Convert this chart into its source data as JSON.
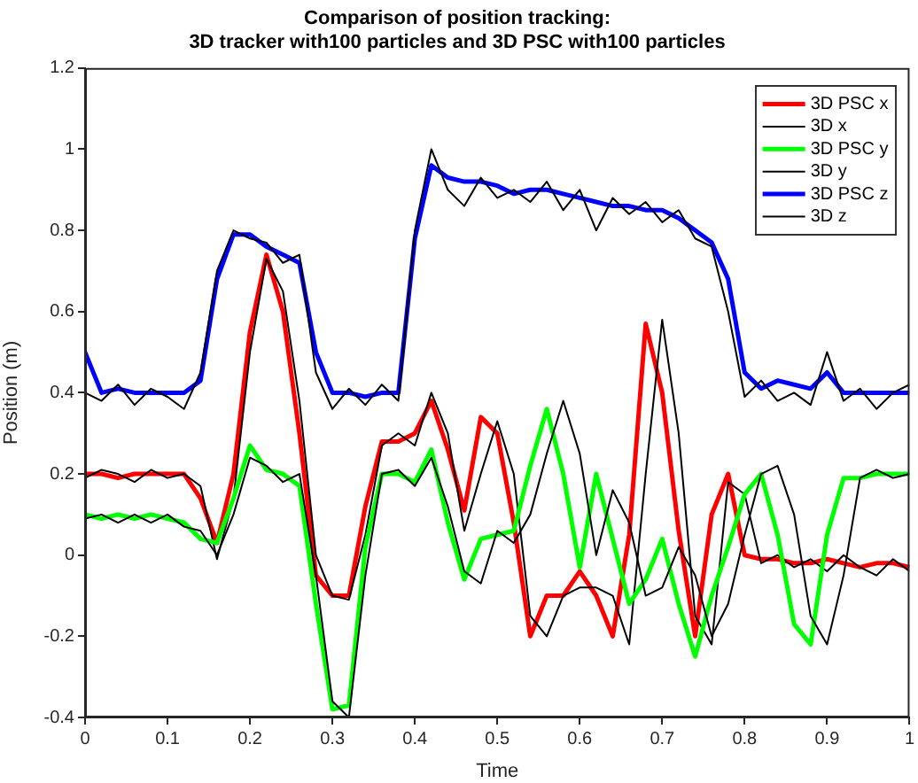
{
  "chart_data": {
    "type": "line",
    "title": [
      "Comparison of position tracking:",
      "3D tracker with100 particles and 3D PSC with100 particles"
    ],
    "xlabel": "Time",
    "ylabel": "Position (m)",
    "x": [
      0,
      0.02,
      0.04,
      0.06,
      0.08,
      0.1,
      0.12,
      0.14,
      0.16,
      0.18,
      0.2,
      0.22,
      0.24,
      0.26,
      0.28,
      0.3,
      0.32,
      0.34,
      0.36,
      0.38,
      0.4,
      0.42,
      0.44,
      0.46,
      0.48,
      0.5,
      0.52,
      0.54,
      0.56,
      0.58,
      0.6,
      0.62,
      0.64,
      0.66,
      0.68,
      0.7,
      0.72,
      0.74,
      0.76,
      0.78,
      0.8,
      0.82,
      0.84,
      0.86,
      0.88,
      0.9,
      0.92,
      0.94,
      0.96,
      0.98,
      1
    ],
    "xlim": [
      0,
      1
    ],
    "xticks": [
      0,
      0.1,
      0.2,
      0.3,
      0.4,
      0.5,
      0.6,
      0.7,
      0.8,
      0.9,
      1
    ],
    "ylim": [
      -0.4,
      1.2
    ],
    "yticks": [
      -0.4,
      -0.2,
      0,
      0.2,
      0.4,
      0.6,
      0.8,
      1,
      1.2
    ],
    "grid": false,
    "legend": "top right",
    "marker": "none",
    "line_style": "solid",
    "series": [
      {
        "name": "3D PSC x",
        "color": "#ff0000",
        "values": [
          0.2,
          0.2,
          0.19,
          0.2,
          0.2,
          0.2,
          0.2,
          0.14,
          0.03,
          0.2,
          0.55,
          0.74,
          0.6,
          0.3,
          -0.05,
          -0.1,
          -0.1,
          0.12,
          0.28,
          0.28,
          0.3,
          0.38,
          0.26,
          0.11,
          0.34,
          0.3,
          0.08,
          -0.2,
          -0.1,
          -0.1,
          -0.04,
          -0.1,
          -0.2,
          0.05,
          0.57,
          0.4,
          0.06,
          -0.2,
          0.1,
          0.2,
          0.0,
          -0.01,
          -0.01,
          -0.02,
          -0.02,
          -0.01,
          -0.02,
          -0.03,
          -0.02,
          -0.02,
          -0.03
        ]
      },
      {
        "name": "3D x",
        "color": "#000000",
        "values": [
          0.19,
          0.21,
          0.2,
          0.18,
          0.21,
          0.19,
          0.2,
          0.17,
          -0.01,
          0.14,
          0.5,
          0.73,
          0.65,
          0.38,
          0.0,
          -0.1,
          -0.11,
          0.05,
          0.27,
          0.3,
          0.27,
          0.4,
          0.3,
          0.06,
          0.2,
          0.33,
          0.2,
          -0.15,
          -0.2,
          -0.1,
          -0.08,
          -0.08,
          -0.1,
          -0.22,
          0.2,
          0.58,
          0.3,
          -0.15,
          -0.22,
          0.18,
          0.15,
          -0.02,
          0.0,
          -0.03,
          -0.01,
          -0.04,
          0.0,
          -0.03,
          -0.05,
          -0.01,
          -0.04
        ]
      },
      {
        "name": "3D PSC y",
        "color": "#00ff00",
        "values": [
          0.1,
          0.09,
          0.1,
          0.09,
          0.1,
          0.09,
          0.08,
          0.04,
          0.03,
          0.14,
          0.27,
          0.21,
          0.2,
          0.17,
          -0.12,
          -0.38,
          -0.37,
          0.02,
          0.2,
          0.2,
          0.18,
          0.26,
          0.08,
          -0.06,
          0.04,
          0.05,
          0.06,
          0.22,
          0.36,
          0.2,
          -0.03,
          0.2,
          0.04,
          -0.12,
          -0.06,
          0.04,
          -0.12,
          -0.25,
          -0.1,
          0.02,
          0.15,
          0.2,
          0.05,
          -0.17,
          -0.22,
          0.05,
          0.19,
          0.19,
          0.2,
          0.2,
          0.2
        ]
      },
      {
        "name": "3D y",
        "color": "#000000",
        "values": [
          0.09,
          0.1,
          0.08,
          0.1,
          0.08,
          0.1,
          0.07,
          0.06,
          0.0,
          0.1,
          0.24,
          0.22,
          0.18,
          0.2,
          -0.05,
          -0.36,
          -0.4,
          -0.05,
          0.2,
          0.21,
          0.17,
          0.24,
          0.12,
          -0.04,
          -0.07,
          0.06,
          0.03,
          0.1,
          0.25,
          0.38,
          0.25,
          0.0,
          0.16,
          0.08,
          -0.1,
          -0.08,
          0.02,
          -0.05,
          -0.2,
          -0.12,
          0.05,
          0.2,
          0.22,
          0.1,
          -0.15,
          -0.22,
          -0.05,
          0.19,
          0.21,
          0.19,
          0.2
        ]
      },
      {
        "name": "3D PSC z",
        "color": "#0000ff",
        "values": [
          0.5,
          0.4,
          0.41,
          0.4,
          0.4,
          0.4,
          0.4,
          0.43,
          0.68,
          0.79,
          0.79,
          0.76,
          0.74,
          0.72,
          0.5,
          0.4,
          0.4,
          0.39,
          0.4,
          0.4,
          0.78,
          0.96,
          0.93,
          0.92,
          0.92,
          0.91,
          0.89,
          0.9,
          0.9,
          0.89,
          0.88,
          0.87,
          0.86,
          0.86,
          0.85,
          0.85,
          0.83,
          0.8,
          0.77,
          0.68,
          0.45,
          0.41,
          0.43,
          0.42,
          0.41,
          0.45,
          0.4,
          0.4,
          0.4,
          0.4,
          0.4
        ]
      },
      {
        "name": "3D z",
        "color": "#000000",
        "values": [
          0.4,
          0.38,
          0.42,
          0.37,
          0.41,
          0.39,
          0.36,
          0.45,
          0.7,
          0.8,
          0.78,
          0.77,
          0.72,
          0.74,
          0.45,
          0.36,
          0.41,
          0.37,
          0.42,
          0.38,
          0.8,
          1.0,
          0.9,
          0.86,
          0.93,
          0.88,
          0.9,
          0.87,
          0.92,
          0.85,
          0.9,
          0.8,
          0.88,
          0.84,
          0.87,
          0.82,
          0.85,
          0.78,
          0.76,
          0.6,
          0.39,
          0.43,
          0.38,
          0.4,
          0.37,
          0.5,
          0.38,
          0.41,
          0.36,
          0.4,
          0.42
        ]
      }
    ]
  }
}
